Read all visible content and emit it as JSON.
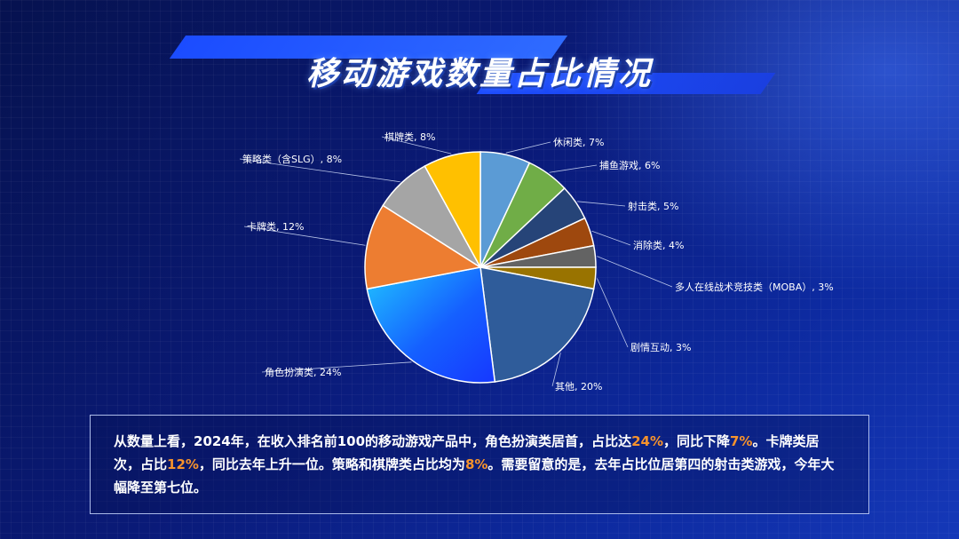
{
  "title": "移动游戏数量占比情况",
  "chart_data": {
    "type": "pie",
    "title": "",
    "slices": [
      {
        "label": "休闲类, 7%",
        "value": 7,
        "color": "#5b9bd5"
      },
      {
        "label": "捕鱼游戏, 6%",
        "value": 6,
        "color": "#70ad47"
      },
      {
        "label": "射击类, 5%",
        "value": 5,
        "color": "#264478"
      },
      {
        "label": "消除类, 4%",
        "value": 4,
        "color": "#9e480e"
      },
      {
        "label": "多人在线战术竞技类（MOBA）, 3%",
        "value": 3,
        "color": "#636363"
      },
      {
        "label": "剧情互动, 3%",
        "value": 3,
        "color": "#997300"
      },
      {
        "label": "其他, 20%",
        "value": 20,
        "color": "#2f5c9a"
      },
      {
        "label": "角色扮演类, 24%",
        "value": 24,
        "color": "gradient-blue"
      },
      {
        "label": "卡牌类, 12%",
        "value": 12,
        "color": "#ed7d31"
      },
      {
        "label": "策略类（含SLG）, 8%",
        "value": 8,
        "color": "#a5a5a5"
      },
      {
        "label": "棋牌类, 8%",
        "value": 8,
        "color": "#ffc000"
      }
    ]
  },
  "summary": {
    "s1": "从数量上看，2024年，在收入排名前100的移动游戏产品中，角色扮演类居首，占比达",
    "h1": "24%",
    "s2": "，同比下降",
    "h2": "7%",
    "s3": "。卡牌类居次，占比",
    "h3": "12%",
    "s4": "，同比去年上升一位。策略和棋牌类占比均为",
    "h4": "8%",
    "s5": "。需要留意的是，去年占比位居第四的射击类游戏，今年大幅降至第七位。"
  }
}
